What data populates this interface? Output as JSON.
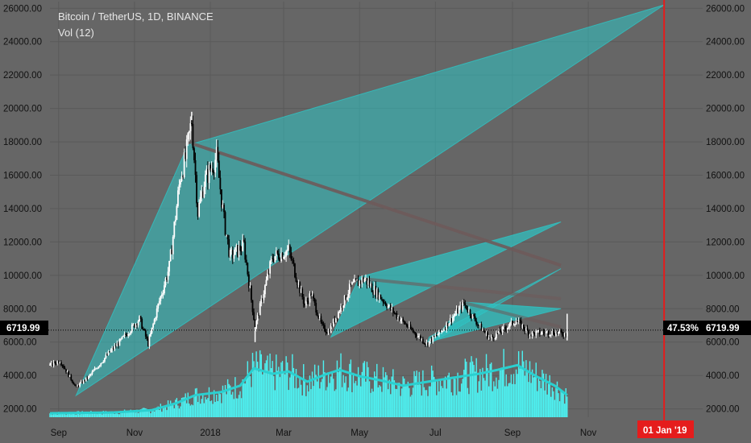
{
  "legend": {
    "symbol": "Bitcoin / TetherUS, 1D, BINANCE",
    "indicator": "Vol (12)"
  },
  "price_tag": {
    "left": "6719.99",
    "right": "6719.99",
    "percent": "47.53%"
  },
  "date_tag": "01 Jan '19",
  "colors": {
    "background": "#666666",
    "grid": "#5a5a5a",
    "fan_fill": "#2ec4c4",
    "candle_up": "#ffffff",
    "candle_down": "#000000",
    "volume": "#4df2f2",
    "volume_ma": "#2ad0d0",
    "red_line": "#e51c1c",
    "trend_line": "#6e5a5a"
  },
  "chart_data": {
    "type": "candlestick",
    "title": "Bitcoin / TetherUS, 1D, BINANCE",
    "y_axis": {
      "min": 1500,
      "max": 26400,
      "ticks": [
        2000,
        4000,
        6000,
        8000,
        10000,
        12000,
        14000,
        16000,
        18000,
        20000,
        22000,
        24000,
        26000
      ],
      "tick_labels": [
        "2000.00",
        "4000.00",
        "6000.00",
        "8000.00",
        "10000.00",
        "12000.00",
        "14000.00",
        "16000.00",
        "18000.00",
        "20000.00",
        "22000.00",
        "24000.00",
        "26000.00"
      ],
      "position": "both"
    },
    "x_axis": {
      "start": "2017-08-25",
      "end": "2019-02-01",
      "ticks": [
        {
          "date": "2017-09-01",
          "label": "Sep"
        },
        {
          "date": "2017-11-01",
          "label": "Nov"
        },
        {
          "date": "2018-01-01",
          "label": "2018"
        },
        {
          "date": "2018-03-01",
          "label": "Mar"
        },
        {
          "date": "2018-05-01",
          "label": "May"
        },
        {
          "date": "2018-07-01",
          "label": "Jul"
        },
        {
          "date": "2018-09-01",
          "label": "Sep"
        },
        {
          "date": "2018-11-01",
          "label": "Nov"
        }
      ]
    },
    "last_price": 6719.99,
    "last_date": "2018-10-15",
    "marker_date": "2019-01-01",
    "price_path": [
      [
        "2017-08-25",
        4600
      ],
      [
        "2017-09-02",
        4900
      ],
      [
        "2017-09-15",
        3300
      ],
      [
        "2017-09-25",
        3900
      ],
      [
        "2017-10-12",
        5400
      ],
      [
        "2017-10-20",
        6000
      ],
      [
        "2017-11-05",
        7400
      ],
      [
        "2017-11-12",
        5900
      ],
      [
        "2017-11-20",
        8200
      ],
      [
        "2017-11-29",
        10500
      ],
      [
        "2017-12-08",
        16000
      ],
      [
        "2017-12-12",
        17000
      ],
      [
        "2017-12-17",
        19300
      ],
      [
        "2017-12-22",
        13800
      ],
      [
        "2017-12-27",
        15600
      ],
      [
        "2018-01-06",
        17100
      ],
      [
        "2018-01-12",
        13300
      ],
      [
        "2018-01-17",
        11100
      ],
      [
        "2018-01-28",
        11800
      ],
      [
        "2018-02-06",
        6900
      ],
      [
        "2018-02-20",
        11100
      ],
      [
        "2018-03-05",
        11500
      ],
      [
        "2018-03-18",
        8200
      ],
      [
        "2018-03-23",
        8900
      ],
      [
        "2018-04-01",
        6900
      ],
      [
        "2018-04-06",
        6600
      ],
      [
        "2018-04-24",
        9300
      ],
      [
        "2018-05-05",
        9800
      ],
      [
        "2018-05-20",
        8500
      ],
      [
        "2018-06-01",
        7500
      ],
      [
        "2018-06-15",
        6500
      ],
      [
        "2018-06-24",
        5900
      ],
      [
        "2018-07-05",
        6600
      ],
      [
        "2018-07-24",
        8300
      ],
      [
        "2018-08-05",
        7000
      ],
      [
        "2018-08-14",
        6200
      ],
      [
        "2018-09-04",
        7300
      ],
      [
        "2018-09-15",
        6500
      ],
      [
        "2018-10-01",
        6600
      ],
      [
        "2018-10-14",
        6500
      ],
      [
        "2018-10-15",
        6720
      ]
    ],
    "wick_events": [
      [
        "2018-02-06",
        6000
      ],
      [
        "2018-10-15",
        7700
      ],
      [
        "2018-10-15",
        6100
      ],
      [
        "2017-12-17",
        19800
      ]
    ],
    "fans": [
      {
        "name": "fan-2017",
        "fill_opacity": 0.55,
        "origin": [
          "2017-09-15",
          2800
        ],
        "edge_a": [
          "2017-12-14",
          17800
        ],
        "edge_b": [
          "2019-01-01",
          26200
        ],
        "edge_c": [
          "2019-01-01",
          26200
        ]
      },
      {
        "name": "fan-2018-may",
        "fill_opacity": 0.7,
        "origin": [
          "2018-04-08",
          6300
        ],
        "edge_a": [
          "2018-05-01",
          9900
        ],
        "edge_b": [
          "2018-10-10",
          13200
        ],
        "edge_c": [
          "2018-10-10",
          13200
        ]
      },
      {
        "name": "fan-2018-jul",
        "fill_opacity": 0.75,
        "origin": [
          "2018-06-30",
          6100
        ],
        "edge_a": [
          "2018-07-24",
          8400
        ],
        "edge_b": [
          "2018-10-10",
          8000
        ],
        "edge_c": [
          "2018-10-10",
          8000
        ]
      },
      {
        "name": "fan-2018-jun-low",
        "fill_opacity": 0.55,
        "origin": [
          "2018-06-24",
          5800
        ],
        "edge_a": [
          "2018-06-26",
          6300
        ],
        "edge_b": [
          "2018-10-10",
          10400
        ],
        "edge_c": [
          "2018-10-10",
          10400
        ]
      }
    ],
    "trend_lines": [
      {
        "from": [
          "2017-12-17",
          17900
        ],
        "to": [
          "2018-10-10",
          10600
        ],
        "opacity": 0.9
      },
      {
        "from": [
          "2018-05-03",
          9800
        ],
        "to": [
          "2018-10-10",
          8600
        ],
        "opacity": 0.6
      },
      {
        "from": [
          "2018-07-22",
          8400
        ],
        "to": [
          "2018-10-10",
          6900
        ],
        "opacity": 0.55
      }
    ],
    "volume": {
      "label": "Vol (12)",
      "path": [
        [
          "2017-08-25",
          0.05
        ],
        [
          "2017-10-15",
          0.06
        ],
        [
          "2017-11-15",
          0.09
        ],
        [
          "2017-12-05",
          0.18
        ],
        [
          "2017-12-20",
          0.28
        ],
        [
          "2018-01-10",
          0.32
        ],
        [
          "2018-01-25",
          0.4
        ],
        [
          "2018-02-05",
          0.62
        ],
        [
          "2018-02-20",
          0.55
        ],
        [
          "2018-03-05",
          0.58
        ],
        [
          "2018-03-20",
          0.45
        ],
        [
          "2018-04-05",
          0.55
        ],
        [
          "2018-04-15",
          0.6
        ],
        [
          "2018-05-01",
          0.52
        ],
        [
          "2018-05-20",
          0.46
        ],
        [
          "2018-06-05",
          0.4
        ],
        [
          "2018-06-25",
          0.45
        ],
        [
          "2018-07-15",
          0.5
        ],
        [
          "2018-08-05",
          0.55
        ],
        [
          "2018-08-20",
          0.6
        ],
        [
          "2018-09-05",
          0.66
        ],
        [
          "2018-09-20",
          0.52
        ],
        [
          "2018-10-05",
          0.4
        ],
        [
          "2018-10-15",
          0.28
        ]
      ]
    }
  }
}
